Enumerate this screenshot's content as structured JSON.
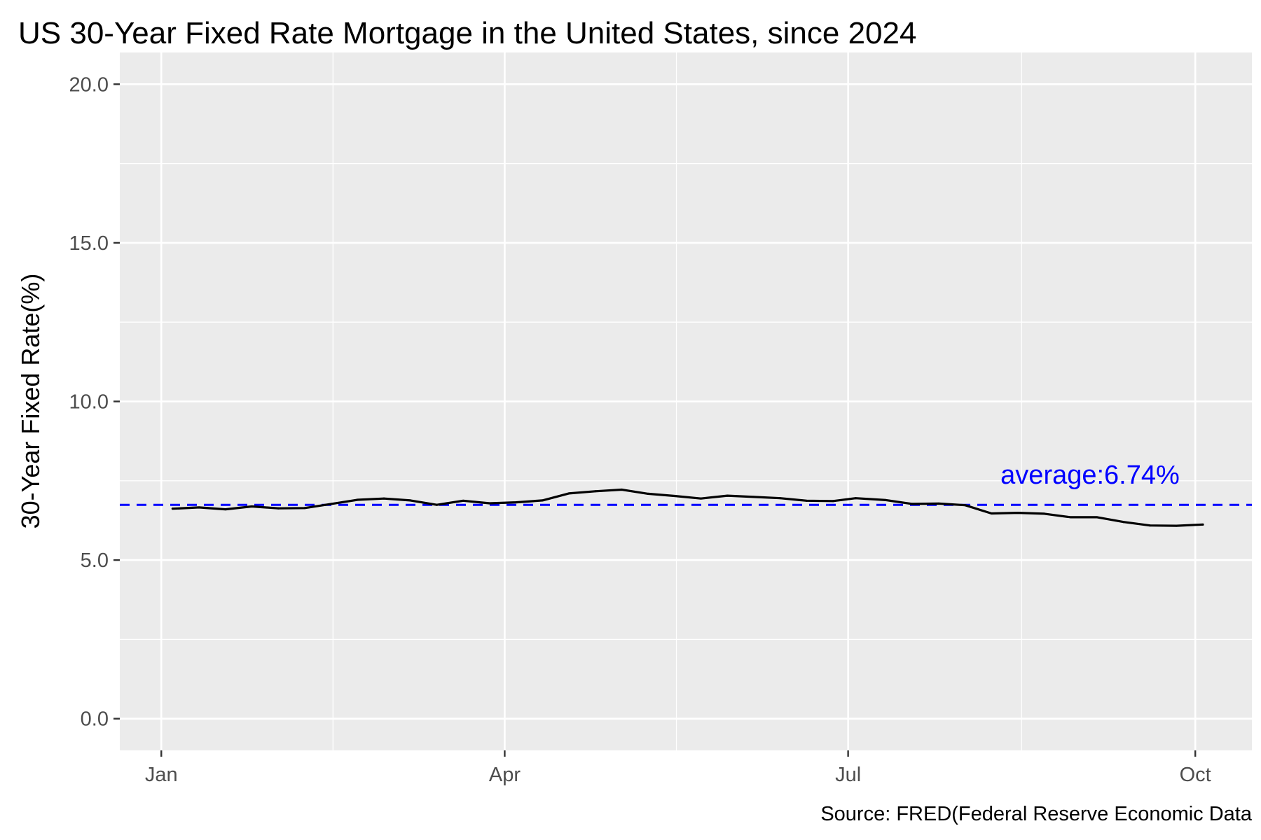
{
  "chart_data": {
    "type": "line",
    "title": "US 30-Year Fixed Rate Mortgage in the United States, since 2024",
    "ylabel": "30-Year Fixed Rate(%)",
    "xlabel": "",
    "caption": "Source: FRED(Federal Reserve Economic Data",
    "x_ticks": [
      {
        "label": "Jan",
        "date": "2024-01-01"
      },
      {
        "label": "Apr",
        "date": "2024-04-01"
      },
      {
        "label": "Jul",
        "date": "2024-07-01"
      },
      {
        "label": "Oct",
        "date": "2024-10-01"
      }
    ],
    "y_ticks": [
      "0.0",
      "5.0",
      "10.0",
      "15.0",
      "20.0"
    ],
    "ylim": [
      -1,
      21
    ],
    "xlim": [
      "2023-12-21",
      "2024-10-16"
    ],
    "grid": true,
    "series": [
      {
        "color": "#000000",
        "points": [
          {
            "x": "2024-01-04",
            "y": 6.62
          },
          {
            "x": "2024-01-11",
            "y": 6.66
          },
          {
            "x": "2024-01-18",
            "y": 6.6
          },
          {
            "x": "2024-01-25",
            "y": 6.69
          },
          {
            "x": "2024-02-01",
            "y": 6.63
          },
          {
            "x": "2024-02-08",
            "y": 6.64
          },
          {
            "x": "2024-02-15",
            "y": 6.77
          },
          {
            "x": "2024-02-22",
            "y": 6.9
          },
          {
            "x": "2024-02-29",
            "y": 6.94
          },
          {
            "x": "2024-03-07",
            "y": 6.88
          },
          {
            "x": "2024-03-14",
            "y": 6.74
          },
          {
            "x": "2024-03-21",
            "y": 6.87
          },
          {
            "x": "2024-03-28",
            "y": 6.79
          },
          {
            "x": "2024-04-04",
            "y": 6.82
          },
          {
            "x": "2024-04-11",
            "y": 6.88
          },
          {
            "x": "2024-04-18",
            "y": 7.1
          },
          {
            "x": "2024-04-25",
            "y": 7.17
          },
          {
            "x": "2024-05-02",
            "y": 7.22
          },
          {
            "x": "2024-05-09",
            "y": 7.09
          },
          {
            "x": "2024-05-16",
            "y": 7.02
          },
          {
            "x": "2024-05-23",
            "y": 6.94
          },
          {
            "x": "2024-05-30",
            "y": 7.03
          },
          {
            "x": "2024-06-06",
            "y": 6.99
          },
          {
            "x": "2024-06-13",
            "y": 6.95
          },
          {
            "x": "2024-06-20",
            "y": 6.87
          },
          {
            "x": "2024-06-27",
            "y": 6.86
          },
          {
            "x": "2024-07-03",
            "y": 6.95
          },
          {
            "x": "2024-07-11",
            "y": 6.89
          },
          {
            "x": "2024-07-18",
            "y": 6.77
          },
          {
            "x": "2024-07-25",
            "y": 6.78
          },
          {
            "x": "2024-08-01",
            "y": 6.73
          },
          {
            "x": "2024-08-08",
            "y": 6.47
          },
          {
            "x": "2024-08-15",
            "y": 6.49
          },
          {
            "x": "2024-08-22",
            "y": 6.46
          },
          {
            "x": "2024-08-29",
            "y": 6.35
          },
          {
            "x": "2024-09-05",
            "y": 6.35
          },
          {
            "x": "2024-09-12",
            "y": 6.2
          },
          {
            "x": "2024-09-19",
            "y": 6.09
          },
          {
            "x": "2024-09-26",
            "y": 6.08
          },
          {
            "x": "2024-10-03",
            "y": 6.12
          }
        ]
      }
    ],
    "reference_line": {
      "y": 6.74,
      "label": "average:6.74%",
      "color": "#0000ff",
      "style": "dashed"
    }
  }
}
